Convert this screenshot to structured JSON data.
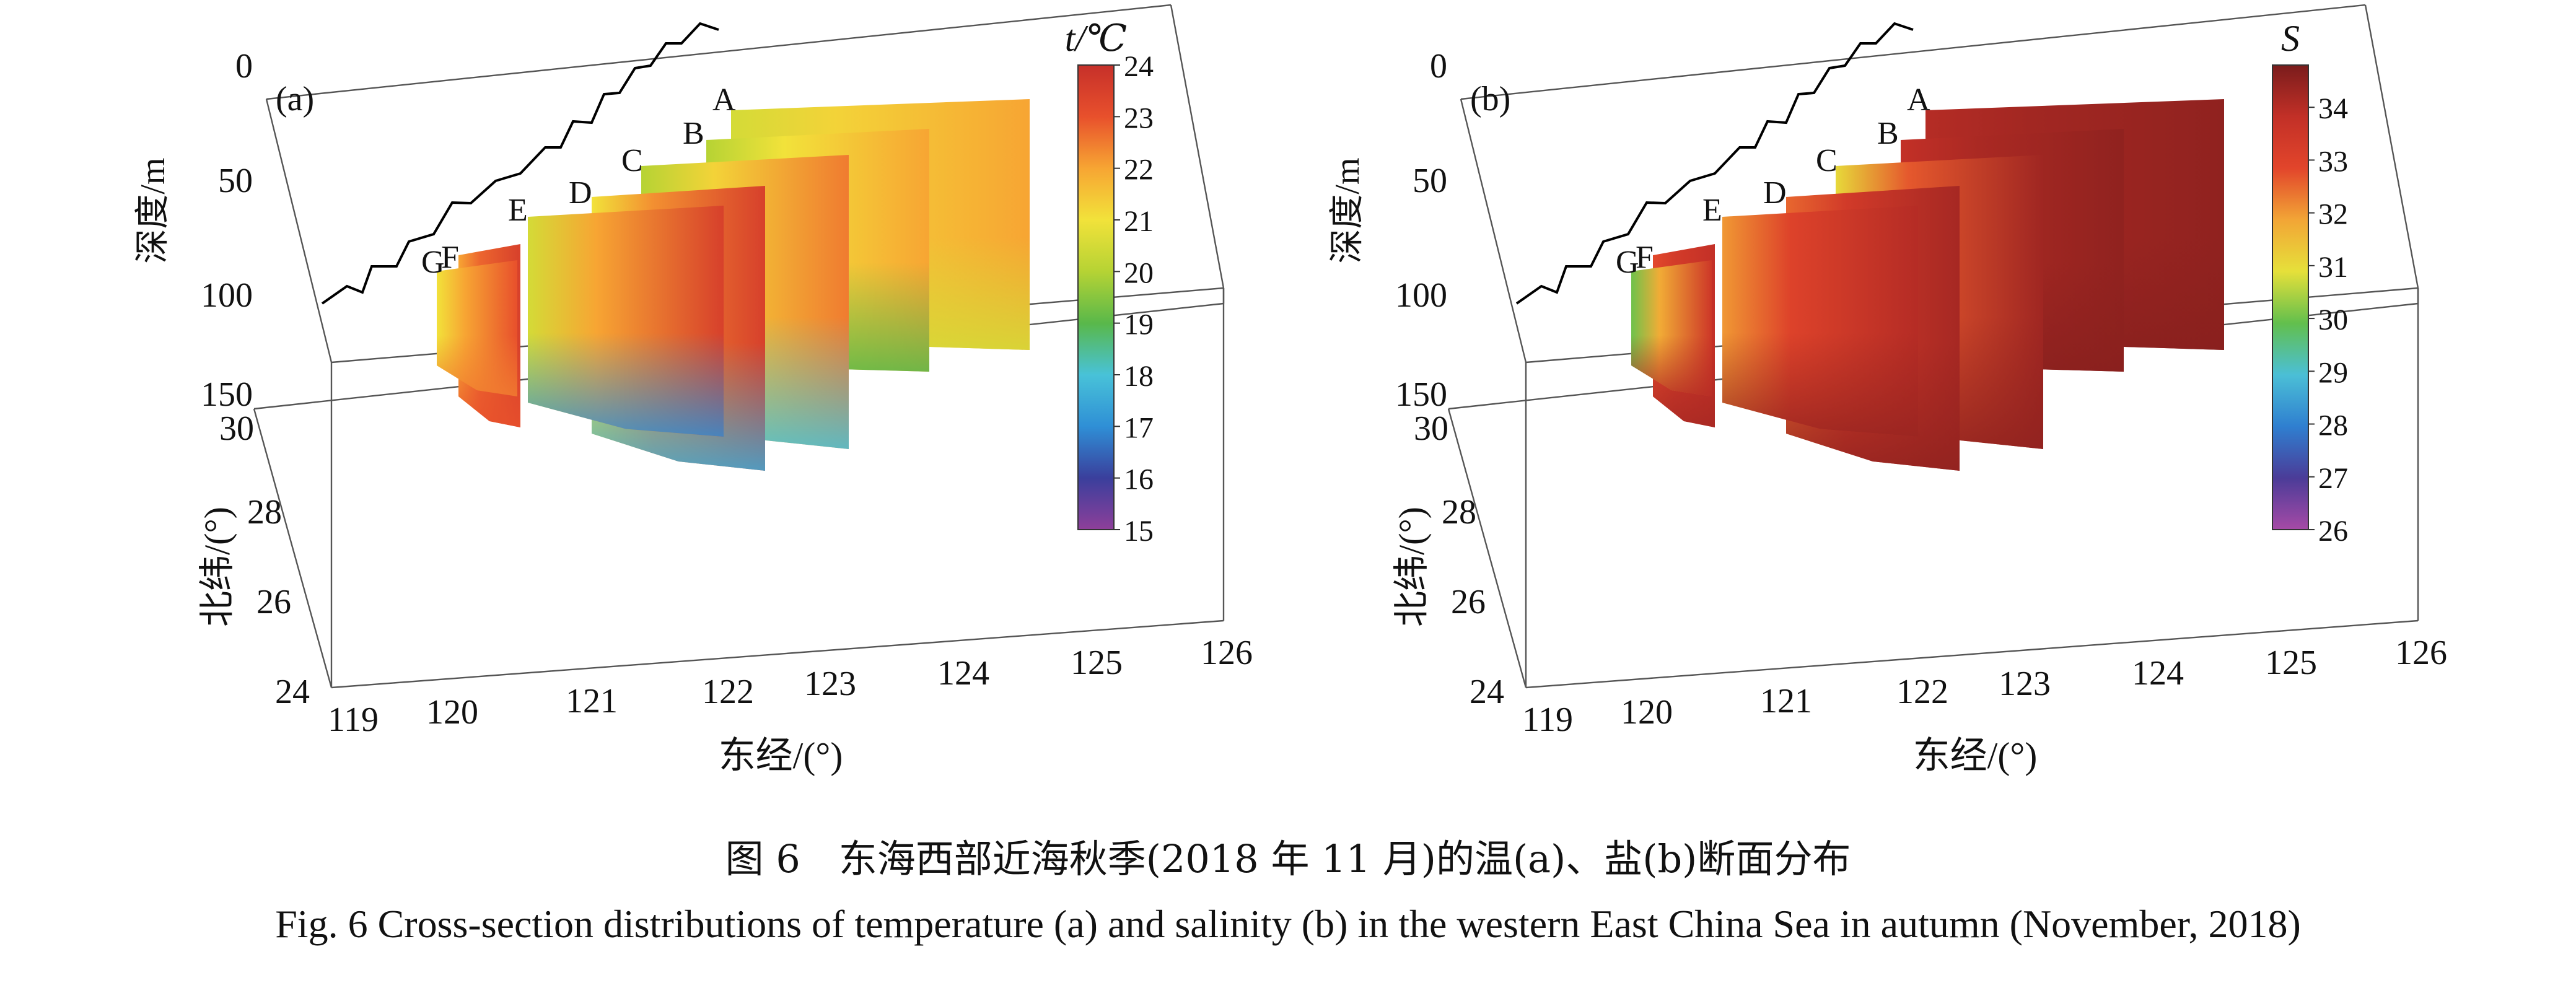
{
  "caption_cn": "图 6　东海西部近海秋季(2018 年 11 月)的温(a)、盐(b)断面分布",
  "caption_en": "Fig. 6  Cross-section distributions of temperature (a) and salinity (b) in the western East China Sea in autumn (November, 2018)",
  "chart_data": [
    {
      "type": "3d-section",
      "panel_label": "(a)",
      "colorbar_title": "t/℃",
      "colorbar_ticks": [
        "24",
        "23",
        "22",
        "21",
        "20",
        "19",
        "18",
        "17",
        "16",
        "15"
      ],
      "colorbar_range": [
        15,
        24
      ],
      "colors": [
        "#8e3f9a",
        "#3a3f9c",
        "#2f8fd6",
        "#48c2d8",
        "#59b84a",
        "#b6d334",
        "#f2e23a",
        "#f7a533",
        "#e8502c",
        "#c6302a"
      ],
      "xlabel": "东经/(°)",
      "xticks": [
        "119",
        "120",
        "121",
        "122",
        "123",
        "124",
        "125",
        "126"
      ],
      "ylabel": "北纬/(°)",
      "yticks": [
        "24",
        "26",
        "28",
        "30"
      ],
      "zlabel": "深度/m",
      "zticks": [
        "0",
        "50",
        "100",
        "150"
      ],
      "section_labels": [
        "A",
        "B",
        "C",
        "D",
        "E",
        "F",
        "G"
      ],
      "section_values": {
        "A": {
          "nearshore": 20.5,
          "offshore": 22.0,
          "bottom": 20.5
        },
        "B": {
          "nearshore": 20.0,
          "offshore": 22.0,
          "bottom": 19.0
        },
        "C": {
          "nearshore": 20.0,
          "offshore": 22.5,
          "bottom": 18.0
        },
        "D": {
          "nearshore": 21.0,
          "offshore": 23.5,
          "bottom": 17.5
        },
        "E": {
          "nearshore": 20.5,
          "offshore": 23.5,
          "bottom": 17.0
        },
        "F": {
          "nearshore": 22.0,
          "offshore": 23.5,
          "bottom": 23.0
        },
        "G": {
          "nearshore": 21.0,
          "offshore": 23.0,
          "bottom": 22.5
        }
      }
    },
    {
      "type": "3d-section",
      "panel_label": "(b)",
      "colorbar_title": "S",
      "colorbar_ticks": [
        "34",
        "33",
        "32",
        "31",
        "30",
        "29",
        "28",
        "27",
        "26"
      ],
      "colorbar_range": [
        26,
        34.8
      ],
      "colors": [
        "#a64aa6",
        "#4b3c98",
        "#2f7fd0",
        "#4bbfd6",
        "#62bf4d",
        "#e6e03a",
        "#f2a536",
        "#e2452b",
        "#c23027",
        "#7a1c1c"
      ],
      "xlabel": "东经/(°)",
      "xticks": [
        "119",
        "120",
        "121",
        "122",
        "123",
        "124",
        "125",
        "126"
      ],
      "ylabel": "北纬/(°)",
      "yticks": [
        "24",
        "26",
        "28",
        "30"
      ],
      "zlabel": "深度/m",
      "zticks": [
        "0",
        "50",
        "100",
        "150"
      ],
      "section_labels": [
        "A",
        "B",
        "C",
        "D",
        "E",
        "F",
        "G"
      ],
      "section_values": {
        "A": {
          "nearshore": 34.0,
          "offshore": 34.5,
          "bottom": 34.6
        },
        "B": {
          "nearshore": 33.8,
          "offshore": 34.5,
          "bottom": 34.6
        },
        "C": {
          "nearshore": 31.0,
          "offshore": 34.3,
          "bottom": 34.5
        },
        "D": {
          "nearshore": 32.5,
          "offshore": 34.2,
          "bottom": 34.5
        },
        "E": {
          "nearshore": 32.0,
          "offshore": 34.0,
          "bottom": 34.4
        },
        "F": {
          "nearshore": 32.8,
          "offshore": 33.8,
          "bottom": 34.2
        },
        "G": {
          "nearshore": 30.0,
          "offshore": 33.5,
          "bottom": 34.0
        }
      }
    }
  ]
}
